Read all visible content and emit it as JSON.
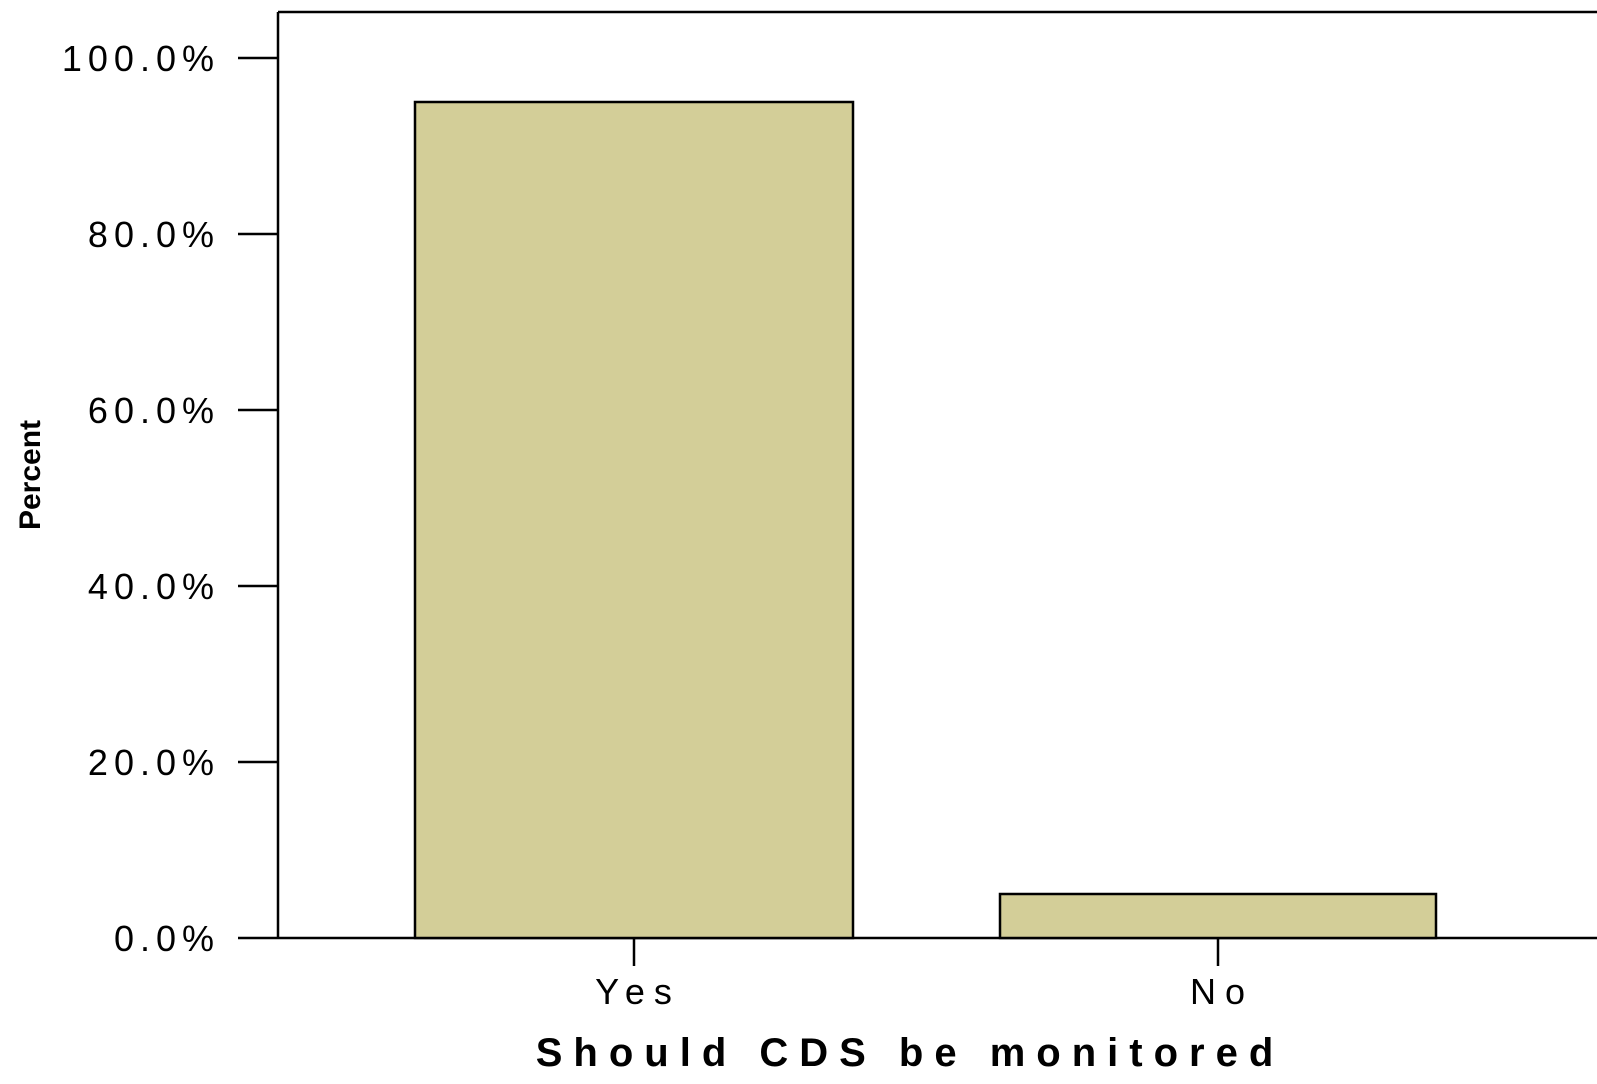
{
  "chart_data": {
    "type": "bar",
    "title": "",
    "xlabel": "Should CDS be monitored",
    "ylabel": "Percent",
    "categories": [
      "Yes",
      "No"
    ],
    "values": [
      95.0,
      5.0
    ],
    "ylim": [
      0,
      100
    ],
    "yticks": [
      {
        "value": 0,
        "label": "0.0%"
      },
      {
        "value": 20,
        "label": "20.0%"
      },
      {
        "value": 40,
        "label": "40.0%"
      },
      {
        "value": 60,
        "label": "60.0%"
      },
      {
        "value": 80,
        "label": "80.0%"
      },
      {
        "value": 100,
        "label": "100.0%"
      }
    ],
    "grid": false,
    "legend": "none",
    "bar_color": "#d3ce98",
    "edge_color": "#000000"
  }
}
